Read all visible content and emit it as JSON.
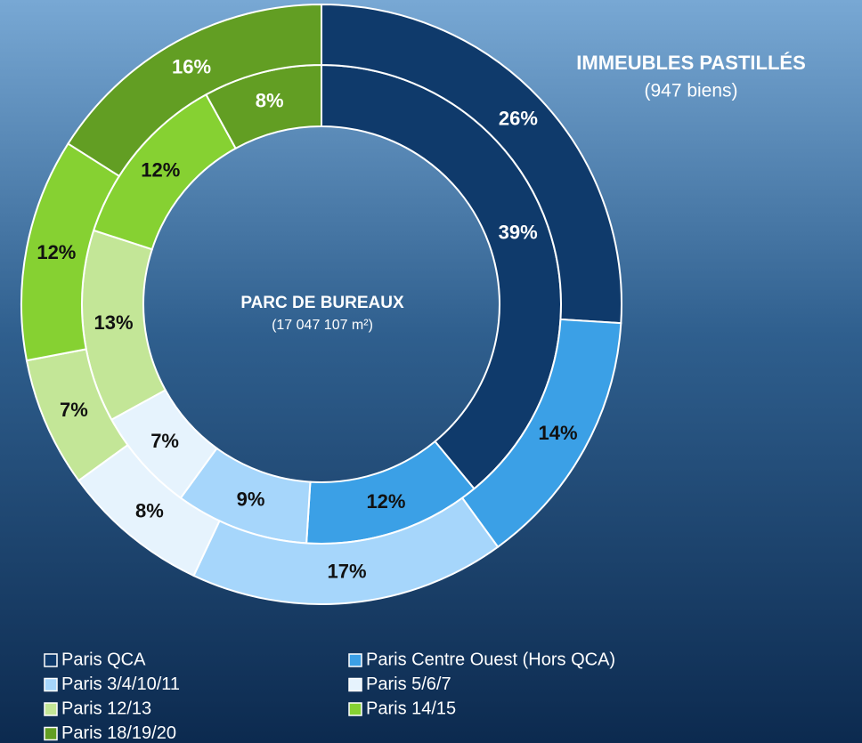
{
  "chart_data": {
    "type": "donut",
    "categories": [
      "Paris QCA",
      "Paris Centre Ouest (Hors QCA)",
      "Paris 3/4/10/11",
      "Paris 5/6/7",
      "Paris 12/13",
      "Paris 14/15",
      "Paris 18/19/20"
    ],
    "colors": [
      "#0f3a6b",
      "#3ba0e6",
      "#a6d6fb",
      "#e6f3fd",
      "#c3e697",
      "#86d132",
      "#629e23"
    ],
    "series": [
      {
        "name": "PARC DE BUREAUX",
        "subtitle": "(17 047 107 m²)",
        "values": [
          39,
          12,
          9,
          7,
          13,
          12,
          8
        ],
        "value_labels": [
          "39%",
          "12%",
          "9%",
          "7%",
          "13%",
          "12%",
          "8%"
        ]
      },
      {
        "name": "IMMEUBLES PASTILLÉS",
        "subtitle": "(947 biens)",
        "values": [
          26,
          14,
          17,
          8,
          7,
          12,
          16
        ],
        "value_labels": [
          "26%",
          "14%",
          "17%",
          "8%",
          "7%",
          "12%",
          "16%"
        ]
      }
    ]
  }
}
